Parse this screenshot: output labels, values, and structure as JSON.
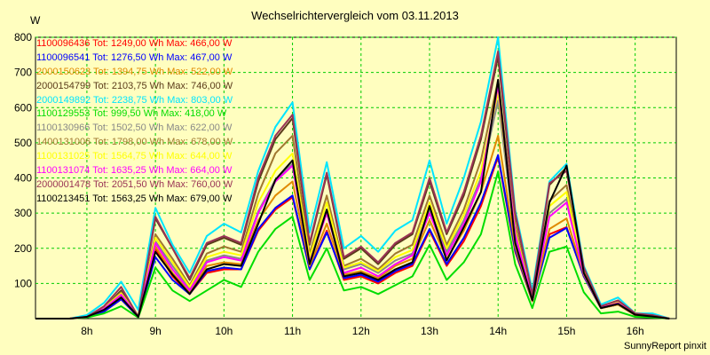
{
  "chart_data": {
    "type": "line",
    "title": "Wechselrichtervergleich vom 03.11.2013",
    "ylabel": "W",
    "footer": "SunnyReport pinxit",
    "ylim": [
      0,
      800
    ],
    "xlim": [
      7.25,
      16.6
    ],
    "yticks": [
      100,
      200,
      300,
      400,
      500,
      600,
      700,
      800
    ],
    "xticks": [
      8,
      9,
      10,
      11,
      12,
      13,
      14,
      15,
      16
    ],
    "xtick_labels": [
      "8h",
      "9h",
      "10h",
      "11h",
      "12h",
      "13h",
      "14h",
      "15h",
      "16h"
    ],
    "grid": true,
    "x": [
      7.25,
      7.5,
      7.75,
      8.0,
      8.25,
      8.5,
      8.75,
      9.0,
      9.25,
      9.5,
      9.75,
      10.0,
      10.25,
      10.5,
      10.75,
      11.0,
      11.25,
      11.5,
      11.75,
      12.0,
      12.25,
      12.5,
      12.75,
      13.0,
      13.25,
      13.5,
      13.75,
      14.0,
      14.25,
      14.5,
      14.75,
      15.0,
      15.25,
      15.5,
      15.75,
      16.0,
      16.25,
      16.5
    ],
    "series": [
      {
        "name": "1100096436",
        "total": "1249,00",
        "max": "466,00",
        "color": "#ff0000",
        "values": [
          0,
          0,
          0,
          5,
          20,
          55,
          5,
          200,
          120,
          70,
          130,
          140,
          140,
          250,
          310,
          345,
          140,
          250,
          110,
          120,
          100,
          130,
          150,
          250,
          150,
          220,
          320,
          460,
          190,
          50,
          240,
          260,
          120,
          30,
          40,
          10,
          5,
          0
        ]
      },
      {
        "name": "1100096541",
        "total": "1276,50",
        "max": "467,00",
        "color": "#0000ff",
        "values": [
          0,
          0,
          0,
          5,
          20,
          55,
          5,
          175,
          110,
          70,
          135,
          145,
          140,
          255,
          315,
          350,
          140,
          245,
          115,
          125,
          105,
          135,
          155,
          255,
          155,
          230,
          330,
          465,
          195,
          50,
          230,
          258,
          120,
          30,
          40,
          10,
          5,
          0
        ]
      },
      {
        "name": "2000150623",
        "total": "1394,75",
        "max": "522,00",
        "color": "#e08a00",
        "values": [
          0,
          0,
          0,
          5,
          25,
          65,
          5,
          205,
          130,
          75,
          150,
          160,
          155,
          280,
          350,
          390,
          150,
          270,
          125,
          135,
          115,
          150,
          170,
          280,
          170,
          250,
          360,
          520,
          205,
          50,
          255,
          285,
          125,
          30,
          40,
          10,
          5,
          0
        ]
      },
      {
        "name": "2000154799",
        "total": "2103,75",
        "max": "746,00",
        "color": "#5a3a1a",
        "values": [
          0,
          0,
          0,
          5,
          30,
          80,
          5,
          285,
          200,
          110,
          210,
          230,
          210,
          390,
          510,
          570,
          210,
          410,
          170,
          200,
          155,
          210,
          240,
          390,
          240,
          350,
          510,
          745,
          295,
          65,
          380,
          430,
          145,
          35,
          50,
          15,
          10,
          0
        ]
      },
      {
        "name": "2000149892",
        "total": "2238,75",
        "max": "803,00",
        "color": "#00e5ff",
        "values": [
          0,
          0,
          0,
          10,
          45,
          105,
          25,
          315,
          210,
          130,
          235,
          270,
          245,
          420,
          545,
          615,
          245,
          445,
          200,
          235,
          190,
          250,
          280,
          450,
          270,
          400,
          560,
          800,
          310,
          80,
          390,
          440,
          150,
          40,
          60,
          15,
          15,
          0
        ]
      },
      {
        "name": "1100129553",
        "total": "999,50",
        "max": "418,00",
        "color": "#00dd00",
        "values": [
          0,
          0,
          0,
          3,
          15,
          35,
          3,
          145,
          80,
          50,
          80,
          110,
          90,
          190,
          255,
          290,
          110,
          200,
          80,
          90,
          70,
          95,
          120,
          210,
          110,
          160,
          240,
          418,
          155,
          30,
          190,
          205,
          75,
          15,
          20,
          5,
          3,
          0
        ]
      },
      {
        "name": "1100130966",
        "total": "1502,50",
        "max": "622,00",
        "color": "#888888",
        "values": [
          0,
          0,
          0,
          5,
          30,
          70,
          5,
          220,
          150,
          85,
          165,
          180,
          170,
          305,
          395,
          440,
          170,
          310,
          140,
          155,
          130,
          165,
          185,
          310,
          190,
          280,
          400,
          620,
          230,
          55,
          300,
          340,
          130,
          32,
          45,
          12,
          7,
          0
        ]
      },
      {
        "name": "1400131006",
        "total": "1798,00",
        "max": "678,00",
        "color": "#a07830",
        "values": [
          0,
          0,
          0,
          5,
          32,
          75,
          5,
          240,
          170,
          95,
          185,
          205,
          190,
          355,
          470,
          520,
          185,
          350,
          150,
          170,
          140,
          185,
          210,
          350,
          210,
          310,
          450,
          678,
          265,
          58,
          335,
          380,
          135,
          33,
          48,
          13,
          8,
          0
        ]
      },
      {
        "name": "1100131025",
        "total": "1564,75",
        "max": "644,00",
        "color": "#ffff00",
        "values": [
          0,
          0,
          0,
          5,
          30,
          72,
          5,
          230,
          160,
          90,
          175,
          190,
          180,
          330,
          420,
          470,
          175,
          330,
          145,
          160,
          135,
          175,
          195,
          330,
          200,
          295,
          420,
          644,
          250,
          56,
          320,
          360,
          132,
          32,
          46,
          12,
          7,
          0
        ]
      },
      {
        "name": "1100131074",
        "total": "1635,25",
        "max": "664,00",
        "color": "#ff00ff",
        "values": [
          0,
          0,
          0,
          5,
          28,
          68,
          5,
          215,
          140,
          80,
          160,
          175,
          165,
          300,
          390,
          435,
          160,
          300,
          130,
          145,
          120,
          155,
          180,
          300,
          180,
          270,
          390,
          664,
          240,
          55,
          290,
          330,
          128,
          31,
          44,
          12,
          7,
          0
        ]
      },
      {
        "name": "2000001478",
        "total": "2051,50",
        "max": "760,00",
        "color": "#993355",
        "values": [
          0,
          0,
          0,
          5,
          35,
          90,
          5,
          290,
          200,
          115,
          215,
          235,
          215,
          400,
          520,
          580,
          215,
          415,
          175,
          205,
          160,
          215,
          245,
          400,
          245,
          360,
          520,
          760,
          300,
          68,
          385,
          420,
          145,
          35,
          52,
          15,
          10,
          0
        ]
      },
      {
        "name": "1100213451",
        "total": "1563,25",
        "max": "679,00",
        "color": "#000000",
        "values": [
          0,
          0,
          0,
          5,
          25,
          60,
          5,
          190,
          125,
          70,
          140,
          155,
          150,
          270,
          395,
          450,
          155,
          310,
          120,
          130,
          110,
          140,
          160,
          320,
          165,
          260,
          360,
          679,
          215,
          52,
          330,
          435,
          130,
          30,
          42,
          11,
          6,
          0
        ]
      }
    ]
  }
}
